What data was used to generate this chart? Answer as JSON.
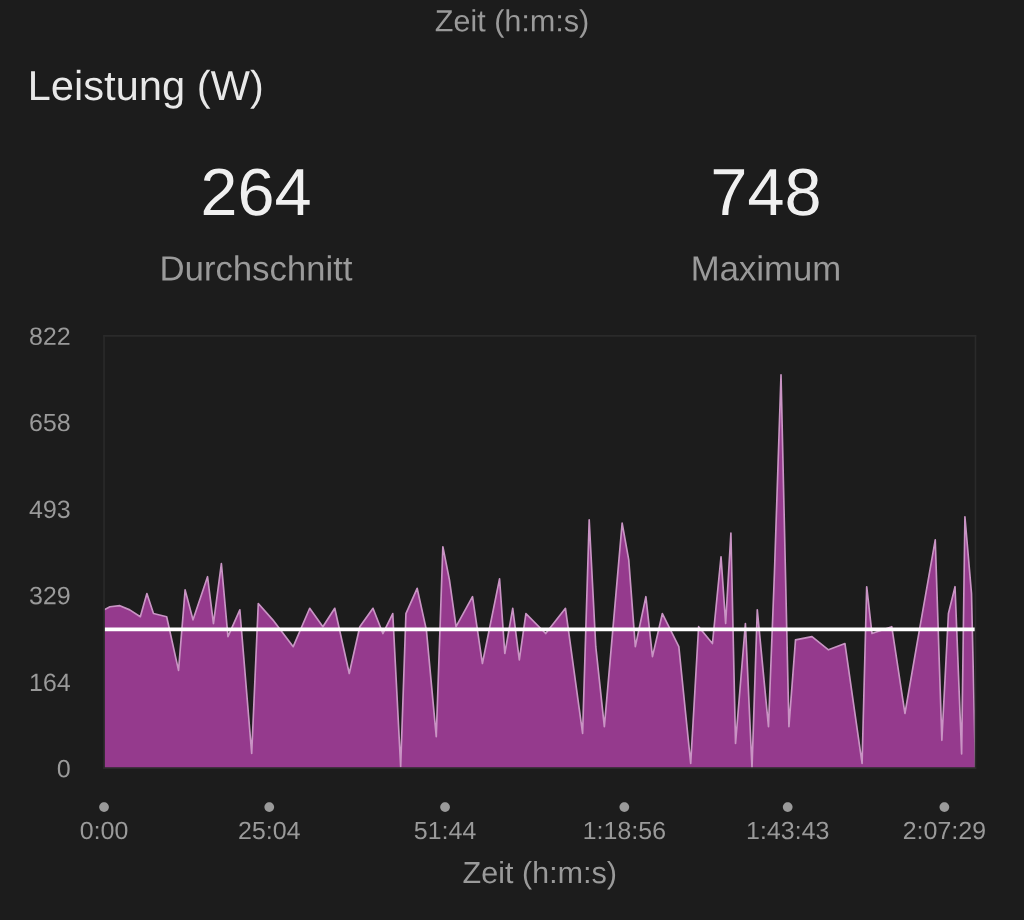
{
  "chart_data": {
    "type": "area",
    "title": "Leistung (W)",
    "xlabel": "Zeit (h:m:s)",
    "annotations": [
      "Zeit (h:m:s)",
      "264",
      "Durchschnitt",
      "748",
      "Maximum"
    ],
    "x": [
      0,
      0.9,
      2.4,
      3.9,
      5.5,
      6.5,
      7.5,
      9.5,
      11.3,
      12.3,
      13.5,
      15.7,
      16.6,
      17.8,
      18.8,
      20.6,
      22.4,
      23.4,
      25.6,
      28.7,
      31.2,
      33.2,
      35.0,
      37.2,
      38.8,
      40.8,
      42.3,
      43.8,
      45.0,
      45.8,
      47.5,
      48.9,
      50.4,
      51.4,
      52.4,
      53.4,
      55.9,
      57.4,
      60.0,
      60.8,
      62.0,
      63.0,
      64.0,
      67.0,
      70.0,
      72.6,
      73.6,
      74.6,
      75.9,
      78.6,
      79.6,
      80.6,
      82.2,
      83.2,
      84.7,
      87.2,
      89.0,
      90.2,
      92.3,
      93.6,
      94.3,
      95.1,
      95.8,
      97.3,
      98.3,
      99.1,
      100.8,
      101.7,
      102.7,
      103.4,
      103.9,
      104.9,
      107.4,
      109.9,
      112.4,
      115.0,
      115.7,
      116.5,
      119.5,
      121.5,
      123.6,
      126.1,
      127.1,
      128.1,
      129.1,
      130.1,
      130.6,
      131.6,
      132.2
    ],
    "series": [
      {
        "color": "#9c3c94",
        "values": [
          301,
          307,
          309,
          301,
          288,
          332,
          294,
          288,
          186,
          339,
          282,
          364,
          275,
          389,
          250,
          301,
          28,
          313,
          282,
          231,
          304,
          269,
          304,
          180,
          269,
          304,
          256,
          294,
          3,
          294,
          342,
          263,
          60,
          421,
          358,
          269,
          326,
          199,
          360,
          218,
          304,
          206,
          294,
          256,
          304,
          66,
          472,
          231,
          79,
          466,
          396,
          231,
          326,
          212,
          294,
          231,
          9,
          269,
          237,
          402,
          275,
          447,
          47,
          275,
          0,
          301,
          79,
          370,
          748,
          358,
          79,
          244,
          250,
          225,
          237,
          9,
          345,
          256,
          269,
          104,
          256,
          434,
          53,
          294,
          345,
          27,
          478,
          332,
          0
        ]
      }
    ],
    "xlim": [
      0,
      132.2
    ],
    "xticks": [
      {
        "value": 0,
        "label": "0:00"
      },
      {
        "value": 25.067,
        "label": "25:04"
      },
      {
        "value": 51.733,
        "label": "51:44"
      },
      {
        "value": 78.933,
        "label": "1:18:56"
      },
      {
        "value": 103.717,
        "label": "1:43:43"
      },
      {
        "value": 127.483,
        "label": "2:07:29"
      }
    ],
    "ylim": [
      0,
      822
    ],
    "yticks": [
      0,
      164,
      329,
      493,
      658,
      822
    ],
    "ref_lines": [
      {
        "axis": "y",
        "value": 264,
        "color": "#ffffff"
      }
    ],
    "grid": false,
    "legend": false,
    "marker": "none",
    "line_style": "solid"
  }
}
